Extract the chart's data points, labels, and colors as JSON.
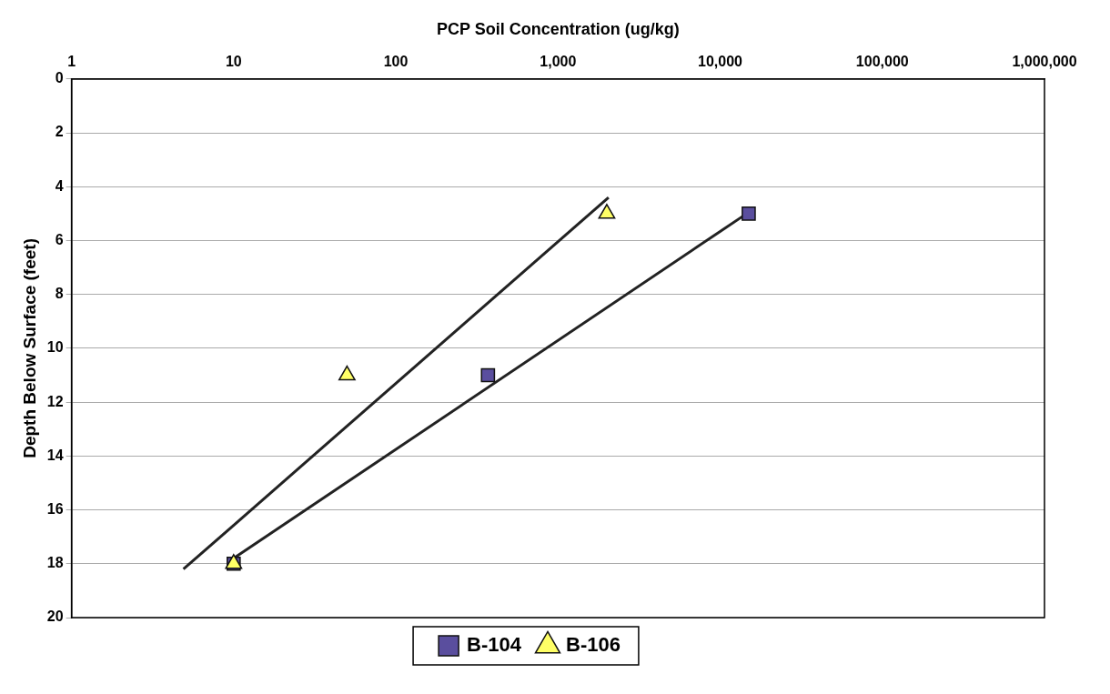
{
  "chart_data": {
    "type": "scatter",
    "xlabel": "PCP Soil Concentration (ug/kg)",
    "ylabel": "Depth Below Surface (feet)",
    "log": "x",
    "xlim": [
      1,
      1000000
    ],
    "xticks": [
      1,
      10,
      100,
      {
        "value": 1000,
        "label": "1,000"
      },
      {
        "value": 10000,
        "label": "10,000"
      },
      {
        "value": 100000,
        "label": "100,000"
      },
      {
        "value": 1000000,
        "label": "1,000,000"
      }
    ],
    "ylim": [
      20,
      0
    ],
    "yticks": [
      0,
      2,
      4,
      6,
      8,
      10,
      12,
      14,
      16,
      18,
      20
    ],
    "grid": "y",
    "legend": "bottom",
    "series": [
      {
        "name": "B-104",
        "marker": "square",
        "color": "#5a4e9e",
        "x": [
          15000,
          370,
          10
        ],
        "values": [
          5,
          11,
          18
        ]
      },
      {
        "name": "B-106",
        "marker": "triangle",
        "color": "#ffff66",
        "x": [
          2000,
          50,
          10
        ],
        "values": [
          5,
          11,
          18
        ]
      },
      {
        "type": "line",
        "marker": "none",
        "color": "#222222",
        "x": [
          10,
          15000
        ],
        "values": [
          17.8,
          4.95
        ]
      },
      {
        "type": "line",
        "marker": "none",
        "color": "#222222",
        "x": [
          4.9,
          2050
        ],
        "values": [
          18.2,
          4.4
        ]
      }
    ]
  }
}
